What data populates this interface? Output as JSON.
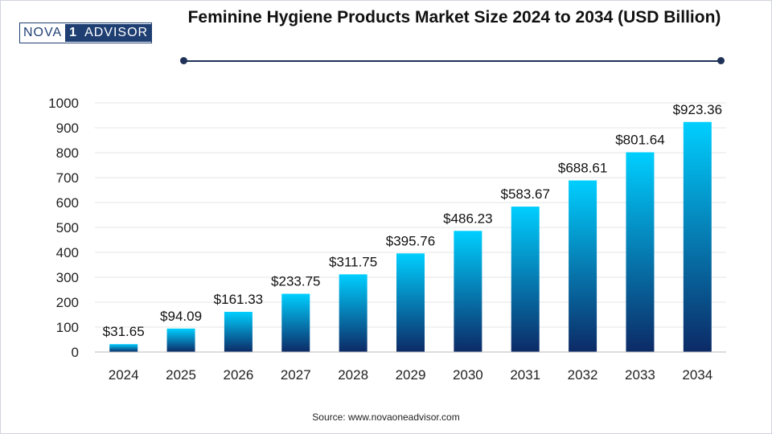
{
  "brand": {
    "logo_part1": "NOVA",
    "logo_part2": "1",
    "logo_part3": "ADVISOR"
  },
  "source_text": "Source: www.novaoneadvisor.com",
  "colors": {
    "bar_top": "#00cfff",
    "bar_bottom": "#0c2a66",
    "title_rule": "#1f3157",
    "gridline": "#e6e6e6"
  },
  "chart_data": {
    "type": "bar",
    "title": "Feminine Hygiene Products Market Size 2024 to 2034 (USD Billion)",
    "xlabel": "",
    "ylabel": "",
    "categories": [
      "2024",
      "2025",
      "2026",
      "2027",
      "2028",
      "2029",
      "2030",
      "2031",
      "2032",
      "2033",
      "2034"
    ],
    "values": [
      31.65,
      94.09,
      161.33,
      233.75,
      311.75,
      395.76,
      486.23,
      583.67,
      688.61,
      801.64,
      923.36
    ],
    "value_labels": [
      "$31.65",
      "$94.09",
      "$161.33",
      "$233.75",
      "$311.75",
      "$395.76",
      "$486.23",
      "$583.67",
      "$688.61",
      "$801.64",
      "$923.36"
    ],
    "ylim": [
      0,
      1000
    ],
    "yticks": [
      0,
      100,
      200,
      300,
      400,
      500,
      600,
      700,
      800,
      900,
      1000
    ],
    "grid": true,
    "legend": "none"
  }
}
